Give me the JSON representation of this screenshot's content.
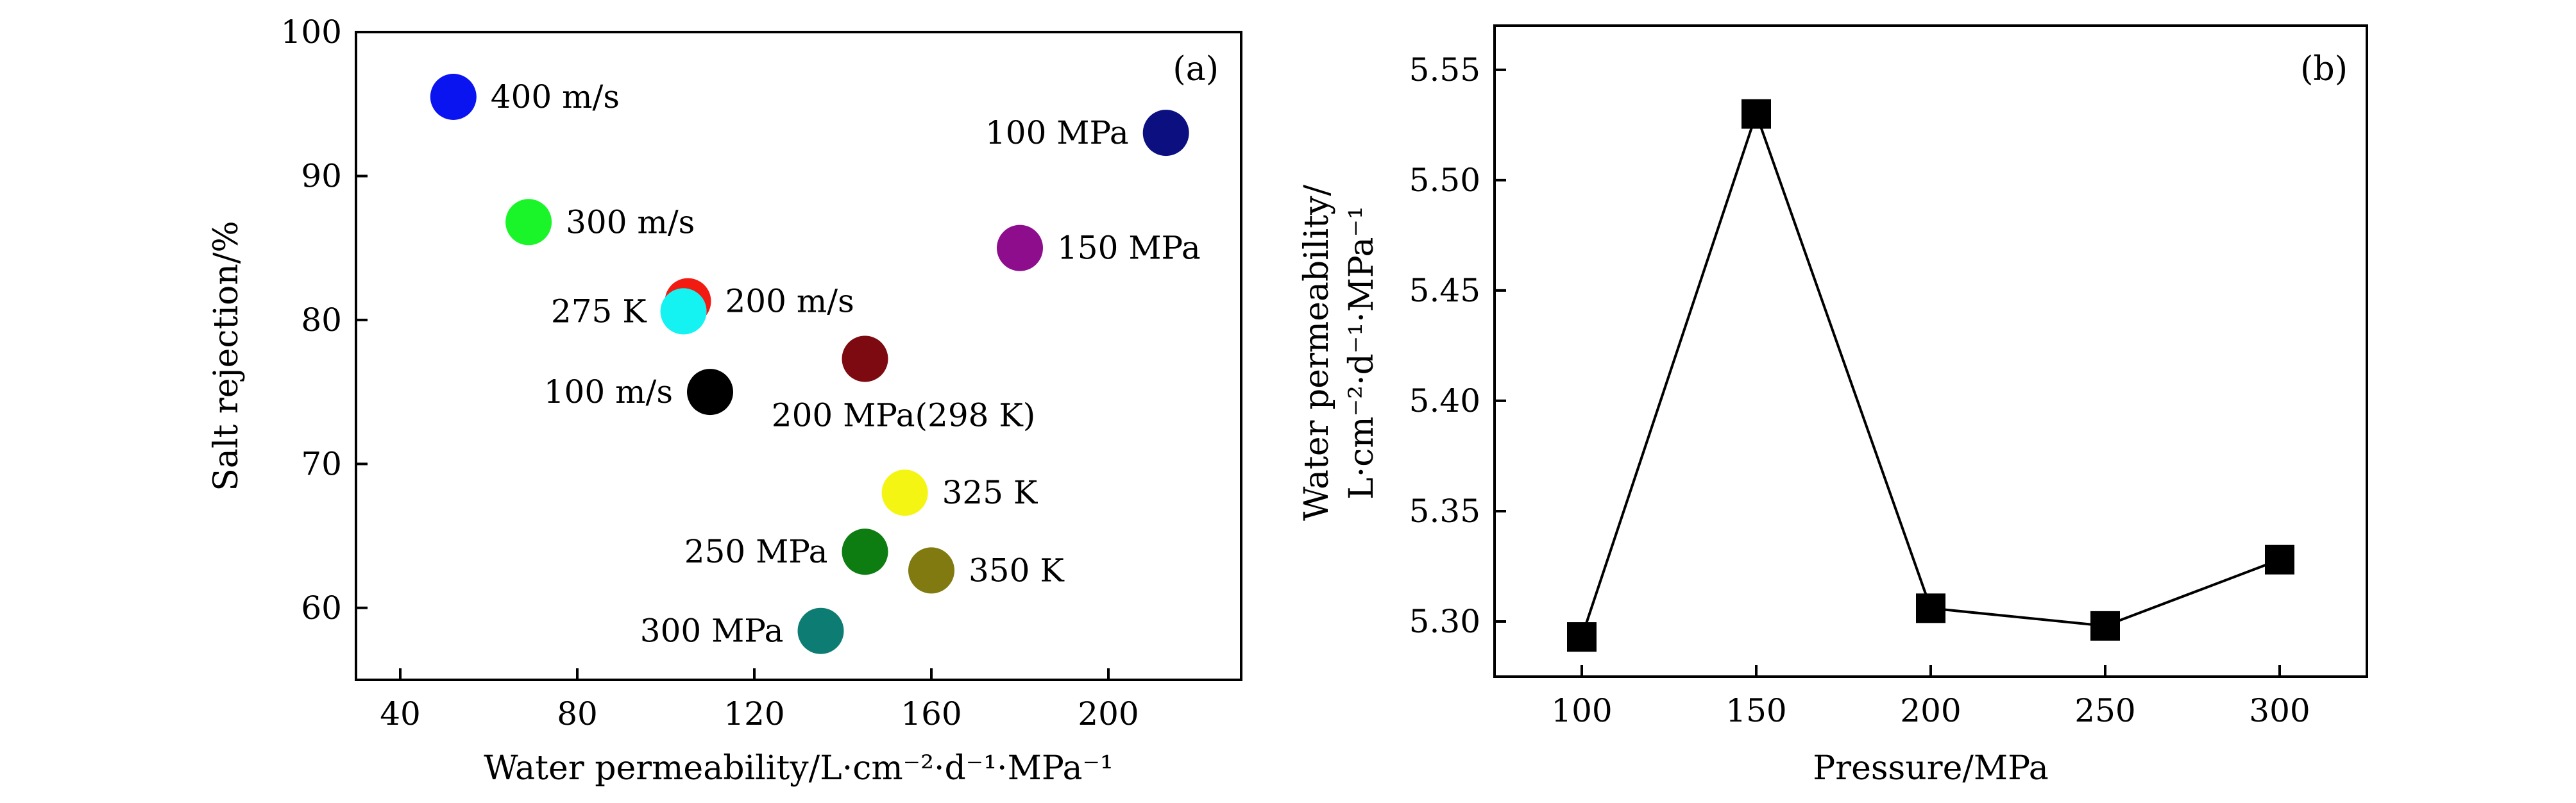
{
  "chart_data": [
    {
      "type": "scatter",
      "panel_label": "(a)",
      "xlabel": "Water permeability/L·cm⁻²·d⁻¹·MPa⁻¹",
      "ylabel": "Salt rejection/%",
      "xlim": [
        30,
        230
      ],
      "ylim": [
        55,
        100
      ],
      "x_ticks": [
        40,
        80,
        120,
        160,
        200
      ],
      "y_ticks": [
        60,
        70,
        80,
        90,
        100
      ],
      "grid": false,
      "points": [
        {
          "label": "400 m/s",
          "x": 52,
          "y": 95.5,
          "color": "#0a14f0",
          "label_side": "right"
        },
        {
          "label": "100 MPa",
          "x": 213,
          "y": 93,
          "color": "#0b0f80",
          "label_side": "left"
        },
        {
          "label": "300 m/s",
          "x": 69,
          "y": 86.8,
          "color": "#1af52a",
          "label_side": "right"
        },
        {
          "label": "150 MPa",
          "x": 180,
          "y": 85,
          "color": "#8d0d8d",
          "label_side": "right"
        },
        {
          "label": "200 m/s",
          "x": 105,
          "y": 81.3,
          "color": "#f21b12",
          "label_side": "right"
        },
        {
          "label": "275 K",
          "x": 104,
          "y": 80.6,
          "color": "#14f2f2",
          "label_side": "left"
        },
        {
          "label": "200 MPa(298 K)",
          "x": 145,
          "y": 77.3,
          "color": "#7d0a10",
          "label_side": "below"
        },
        {
          "label": "100 m/s",
          "x": 110,
          "y": 75,
          "color": "#000000",
          "label_side": "left"
        },
        {
          "label": "325 K",
          "x": 154,
          "y": 68,
          "color": "#f5f514",
          "label_side": "right"
        },
        {
          "label": "250 MPa",
          "x": 145,
          "y": 63.9,
          "color": "#0d7d12",
          "label_side": "left"
        },
        {
          "label": "350 K",
          "x": 160,
          "y": 62.6,
          "color": "#807a10",
          "label_side": "right"
        },
        {
          "label": "300 MPa",
          "x": 135,
          "y": 58.4,
          "color": "#0d7d74",
          "label_side": "left"
        }
      ]
    },
    {
      "type": "line",
      "panel_label": "(b)",
      "xlabel": "Pressure/MPa",
      "ylabel_line1": "Water permeability/",
      "ylabel_line2": "L·cm⁻²·d⁻¹·MPa⁻¹",
      "xlim": [
        75,
        325
      ],
      "ylim": [
        5.275,
        5.57
      ],
      "x_ticks": [
        100,
        150,
        200,
        250,
        300
      ],
      "y_ticks": [
        "5.30",
        "5.35",
        "5.40",
        "5.45",
        "5.50",
        "5.55"
      ],
      "grid": false,
      "marker": "square",
      "x": [
        100,
        150,
        200,
        250,
        300
      ],
      "y": [
        5.293,
        5.53,
        5.306,
        5.298,
        5.328
      ]
    }
  ]
}
